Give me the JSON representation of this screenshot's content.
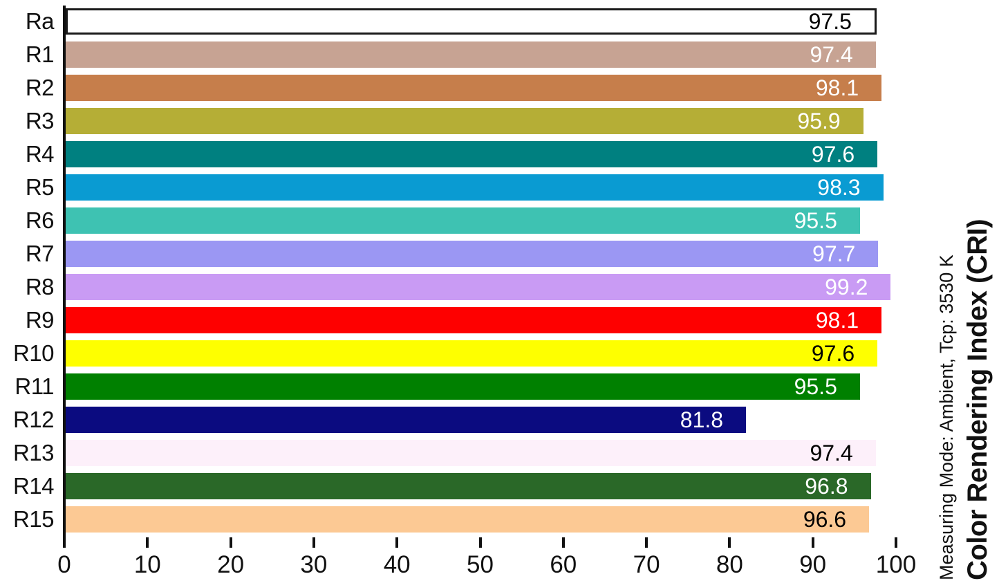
{
  "chart_data": {
    "type": "bar",
    "orientation": "horizontal",
    "title": "Color Rendering Index (CRI)",
    "subtitle": "Measuring Mode: Ambient, Tcp: 3530 K",
    "xlabel": "",
    "ylabel": "",
    "xlim": [
      0,
      100
    ],
    "x_ticks": [
      0,
      10,
      20,
      30,
      40,
      50,
      60,
      70,
      80,
      90,
      100
    ],
    "grid": false,
    "legend": "none",
    "axis_color": "#111111",
    "categories": [
      "Ra",
      "R1",
      "R2",
      "R3",
      "R4",
      "R5",
      "R6",
      "R7",
      "R8",
      "R9",
      "R10",
      "R11",
      "R12",
      "R13",
      "R14",
      "R15"
    ],
    "values": [
      97.5,
      97.4,
      98.1,
      95.9,
      97.6,
      98.3,
      95.5,
      97.7,
      99.2,
      98.1,
      97.6,
      95.5,
      81.8,
      97.4,
      96.8,
      96.6
    ],
    "bars": [
      {
        "label": "Ra",
        "value": 97.5,
        "color": "#ffffff",
        "text_color": "#000000",
        "border": "#1a1a1a"
      },
      {
        "label": "R1",
        "value": 97.4,
        "color": "#c7a393",
        "text_color": "#ffffff"
      },
      {
        "label": "R2",
        "value": 98.1,
        "color": "#c67e4b",
        "text_color": "#ffffff"
      },
      {
        "label": "R3",
        "value": 95.9,
        "color": "#b5ae36",
        "text_color": "#ffffff"
      },
      {
        "label": "R4",
        "value": 97.6,
        "color": "#008080",
        "text_color": "#ffffff"
      },
      {
        "label": "R5",
        "value": 98.3,
        "color": "#0a9bd2",
        "text_color": "#ffffff"
      },
      {
        "label": "R6",
        "value": 95.5,
        "color": "#3ec2b2",
        "text_color": "#ffffff"
      },
      {
        "label": "R7",
        "value": 97.7,
        "color": "#9b97f3",
        "text_color": "#ffffff"
      },
      {
        "label": "R8",
        "value": 99.2,
        "color": "#c99bf4",
        "text_color": "#ffffff"
      },
      {
        "label": "R9",
        "value": 98.1,
        "color": "#fe0000",
        "text_color": "#ffffff"
      },
      {
        "label": "R10",
        "value": 97.6,
        "color": "#feff00",
        "text_color": "#000000"
      },
      {
        "label": "R11",
        "value": 95.5,
        "color": "#008000",
        "text_color": "#ffffff"
      },
      {
        "label": "R12",
        "value": 81.8,
        "color": "#0b0b80",
        "text_color": "#ffffff"
      },
      {
        "label": "R13",
        "value": 97.4,
        "color": "#fdf0fa",
        "text_color": "#000000"
      },
      {
        "label": "R14",
        "value": 96.8,
        "color": "#2a6828",
        "text_color": "#ffffff"
      },
      {
        "label": "R15",
        "value": 96.6,
        "color": "#fcc994",
        "text_color": "#000000"
      }
    ]
  }
}
